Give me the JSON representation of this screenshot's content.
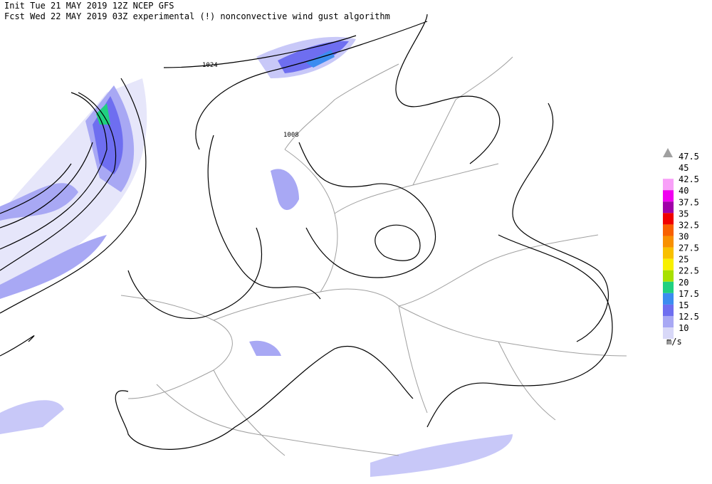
{
  "header": {
    "line1": "Init  Tue 21 MAY 2019 12Z  NCEP GFS",
    "line2": "Fcst Wed 22 MAY 2019 03Z  experimental (!) nonconvective wind gust algorithm"
  },
  "contour_labels": [
    "1024",
    "1008"
  ],
  "legend": {
    "unit": "m/s",
    "entries": [
      {
        "label": "47.5"
      },
      {
        "label": "45"
      },
      {
        "label": "42.5",
        "color": "#f8a0f8"
      },
      {
        "label": "40",
        "color": "#f000f0"
      },
      {
        "label": "37.5",
        "color": "#a000a8"
      },
      {
        "label": "35",
        "color": "#f00000"
      },
      {
        "label": "32.5",
        "color": "#f86000"
      },
      {
        "label": "30",
        "color": "#f89000"
      },
      {
        "label": "27.5",
        "color": "#f8c000"
      },
      {
        "label": "25",
        "color": "#f8f000"
      },
      {
        "label": "22.5",
        "color": "#a8e000"
      },
      {
        "label": "20",
        "color": "#20d080"
      },
      {
        "label": "17.5",
        "color": "#3c8cf0"
      },
      {
        "label": "15",
        "color": "#6e6ef0"
      },
      {
        "label": "12.5",
        "color": "#a8a8f4"
      },
      {
        "label": "10",
        "color": "#d8d8f8"
      }
    ]
  }
}
